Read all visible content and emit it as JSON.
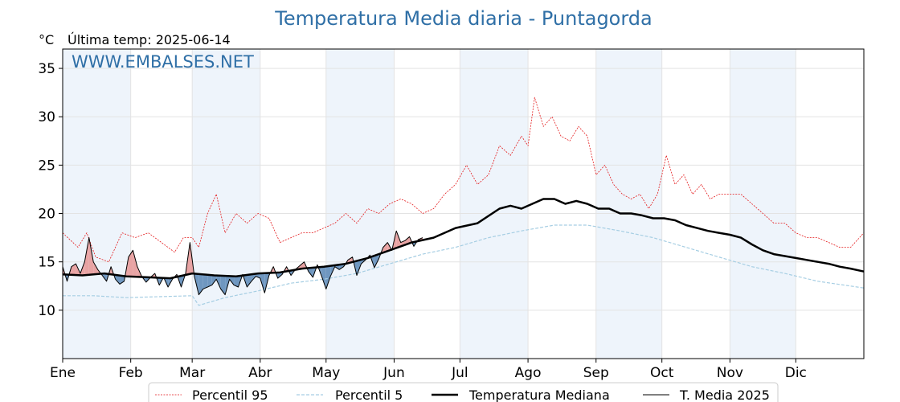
{
  "chart_data": {
    "type": "line",
    "title": "Temperatura Media diaria - Puntagorda",
    "ylabel": "°C",
    "subtitle": "Última temp: 2025-06-14",
    "watermark": "WWW.EMBALSES.NET",
    "ylim": [
      5,
      37
    ],
    "yticks": [
      10,
      15,
      20,
      25,
      30,
      35
    ],
    "xlim": [
      1,
      366
    ],
    "months": [
      {
        "label": "Ene",
        "start": 1
      },
      {
        "label": "Feb",
        "start": 32
      },
      {
        "label": "Mar",
        "start": 60
      },
      {
        "label": "Abr",
        "start": 91
      },
      {
        "label": "May",
        "start": 121
      },
      {
        "label": "Jun",
        "start": 152
      },
      {
        "label": "Jul",
        "start": 182
      },
      {
        "label": "Ago",
        "start": 213
      },
      {
        "label": "Sep",
        "start": 244
      },
      {
        "label": "Oct",
        "start": 274
      },
      {
        "label": "Nov",
        "start": 305
      },
      {
        "label": "Dic",
        "start": 335
      }
    ],
    "grid": true,
    "legend_position": "bottom",
    "colors": {
      "p95": "#e41a1c",
      "p5": "#a6cee3",
      "median": "#000000",
      "current": "#000000",
      "above_fill": "#e8a3a3",
      "below_fill": "#6f97c0",
      "band": "#eef4fb"
    },
    "series": [
      {
        "key": "p95",
        "name": "Percentil 95",
        "x": [
          1,
          8,
          12,
          16,
          22,
          28,
          34,
          40,
          46,
          52,
          56,
          60,
          63,
          67,
          71,
          75,
          80,
          85,
          90,
          95,
          100,
          105,
          110,
          115,
          120,
          125,
          130,
          135,
          140,
          145,
          150,
          155,
          160,
          165,
          170,
          175,
          180,
          185,
          190,
          195,
          200,
          205,
          210,
          213,
          216,
          220,
          224,
          228,
          232,
          236,
          240,
          244,
          248,
          252,
          256,
          260,
          264,
          268,
          272,
          276,
          280,
          284,
          288,
          292,
          296,
          300,
          305,
          310,
          315,
          320,
          325,
          330,
          335,
          340,
          345,
          350,
          355,
          360,
          366
        ],
        "y": [
          18,
          16.5,
          18,
          15.5,
          15,
          18,
          17.5,
          18,
          17,
          16,
          17.5,
          17.5,
          16.5,
          20,
          22,
          18,
          20,
          19,
          20,
          19.5,
          17,
          17.5,
          18,
          18,
          18.5,
          19,
          20,
          19,
          20.5,
          20,
          21,
          21.5,
          21,
          20,
          20.5,
          22,
          23,
          25,
          23,
          24,
          27,
          26,
          28,
          27,
          32,
          29,
          30,
          28,
          27.5,
          29,
          28,
          24,
          25,
          23,
          22,
          21.5,
          22,
          20.5,
          22,
          26,
          23,
          24,
          22,
          23,
          21.5,
          22,
          22,
          22,
          21,
          20,
          19,
          19,
          18,
          17.5,
          17.5,
          17,
          16.5,
          16.5,
          18
        ]
      },
      {
        "key": "p5",
        "name": "Percentil 5",
        "x": [
          1,
          15,
          30,
          45,
          60,
          63,
          75,
          90,
          105,
          120,
          135,
          150,
          165,
          180,
          195,
          210,
          225,
          240,
          255,
          270,
          285,
          300,
          315,
          330,
          345,
          366
        ],
        "y": [
          11.5,
          11.5,
          11.3,
          11.4,
          11.5,
          10.5,
          11.3,
          12,
          12.8,
          13.2,
          13.8,
          14.8,
          15.8,
          16.5,
          17.5,
          18.2,
          18.8,
          18.8,
          18.2,
          17.5,
          16.5,
          15.5,
          14.5,
          13.8,
          13,
          12.3
        ]
      },
      {
        "key": "median",
        "name": "Temperatura Mediana",
        "x": [
          1,
          10,
          20,
          30,
          40,
          50,
          60,
          70,
          80,
          90,
          100,
          110,
          120,
          130,
          140,
          150,
          160,
          170,
          180,
          190,
          200,
          205,
          210,
          215,
          220,
          225,
          230,
          235,
          240,
          245,
          250,
          255,
          260,
          265,
          270,
          275,
          280,
          285,
          290,
          295,
          300,
          305,
          310,
          315,
          320,
          325,
          330,
          335,
          340,
          345,
          350,
          355,
          360,
          366
        ],
        "y": [
          13.7,
          13.6,
          13.8,
          13.5,
          13.4,
          13.3,
          13.8,
          13.6,
          13.5,
          13.8,
          13.9,
          14.3,
          14.5,
          14.8,
          15.4,
          16.2,
          17,
          17.5,
          18.5,
          19,
          20.5,
          20.8,
          20.5,
          21,
          21.5,
          21.5,
          21,
          21.3,
          21,
          20.5,
          20.5,
          20,
          20,
          19.8,
          19.5,
          19.5,
          19.3,
          18.8,
          18.5,
          18.2,
          18,
          17.8,
          17.5,
          16.8,
          16.2,
          15.8,
          15.6,
          15.4,
          15.2,
          15,
          14.8,
          14.5,
          14.3,
          14
        ]
      },
      {
        "key": "current",
        "name": "T. Media 2025",
        "x": [
          1,
          3,
          5,
          7,
          9,
          11,
          13,
          15,
          17,
          19,
          21,
          23,
          25,
          27,
          29,
          31,
          33,
          35,
          37,
          39,
          41,
          43,
          45,
          47,
          49,
          51,
          53,
          55,
          57,
          59,
          61,
          63,
          65,
          67,
          69,
          71,
          73,
          75,
          77,
          79,
          81,
          83,
          85,
          87,
          89,
          91,
          93,
          95,
          97,
          99,
          101,
          103,
          105,
          107,
          109,
          111,
          113,
          115,
          117,
          119,
          121,
          123,
          125,
          127,
          129,
          131,
          133,
          135,
          137,
          139,
          141,
          143,
          145,
          147,
          149,
          151,
          153,
          155,
          157,
          159,
          161,
          163,
          165
        ],
        "y": [
          14.5,
          13,
          14.5,
          14.8,
          13.8,
          15,
          17.5,
          15,
          14.2,
          13.6,
          13,
          14.5,
          13.2,
          12.7,
          13,
          15.5,
          16.2,
          14.5,
          13.5,
          12.9,
          13.4,
          13.8,
          12.6,
          13.4,
          12.4,
          13.2,
          13.7,
          12.4,
          13.8,
          17,
          13.5,
          11.6,
          12.2,
          12.4,
          12.6,
          13.2,
          12.2,
          11.6,
          13.2,
          12.6,
          12.4,
          13.7,
          12.4,
          13,
          13.5,
          13.3,
          11.8,
          13.6,
          14.5,
          13.3,
          13.7,
          14.5,
          13.6,
          14.2,
          14.6,
          15,
          14,
          13.4,
          14.7,
          13.5,
          12.2,
          13.5,
          14.5,
          14.2,
          14.5,
          15.2,
          15.5,
          13.6,
          14.8,
          15.2,
          15.7,
          14.4,
          15.3,
          16.5,
          17,
          16.2,
          18.2,
          17,
          17.2,
          17.6,
          16.6,
          17.3,
          17.5
        ]
      }
    ]
  }
}
